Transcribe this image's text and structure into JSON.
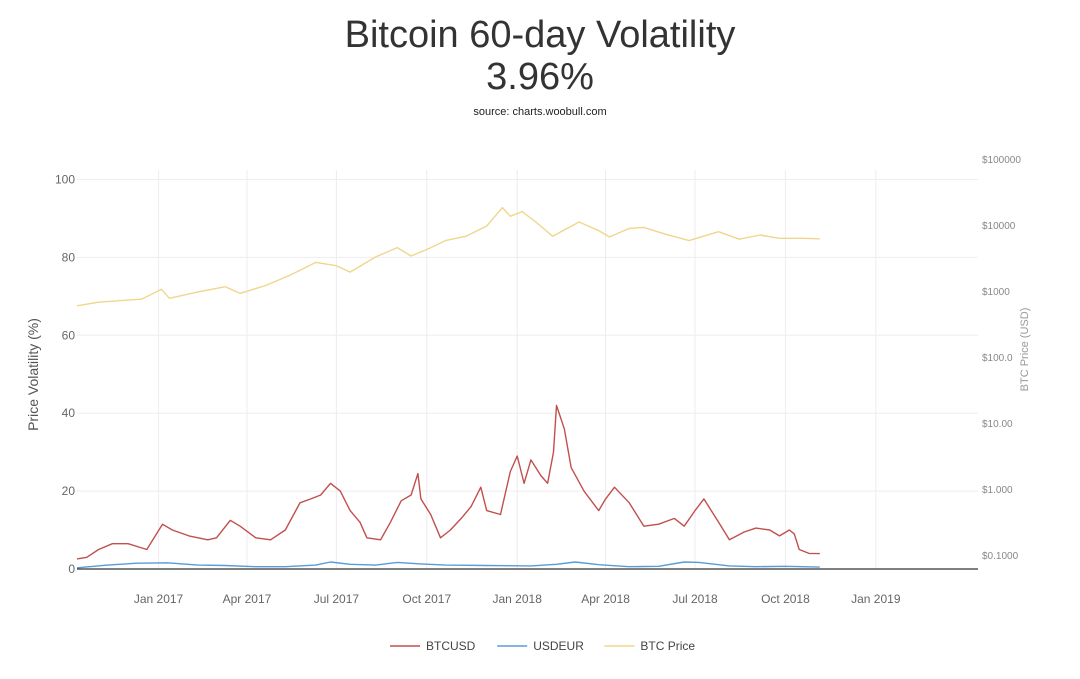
{
  "header": {
    "title": "Bitcoin 60-day Volatility",
    "value": "3.96%",
    "source": "source: charts.woobull.com"
  },
  "chart_data": {
    "type": "line",
    "ylabel": "Price Volatility (%)",
    "y2label": "BTC Price (USD)",
    "ylim": [
      0,
      105
    ],
    "yticks": [
      0,
      20,
      40,
      60,
      80,
      100
    ],
    "y2_scale": "log",
    "y2lim_log": [
      -1.2,
      5
    ],
    "y2ticks": [
      {
        "v": -1,
        "label": "$0.1000"
      },
      {
        "v": 0,
        "label": "$1.000"
      },
      {
        "v": 1,
        "label": "$10.00"
      },
      {
        "v": 2,
        "label": "$100.0"
      },
      {
        "v": 3,
        "label": "$1000"
      },
      {
        "v": 4,
        "label": "$10000"
      },
      {
        "v": 5,
        "label": "$100000"
      }
    ],
    "xlim": [
      "2016-10-10",
      "2019-04-15"
    ],
    "xticks": [
      {
        "x": "2017-01-01",
        "label": "Jan 2017"
      },
      {
        "x": "2017-04-01",
        "label": "Apr 2017"
      },
      {
        "x": "2017-07-01",
        "label": "Jul 2017"
      },
      {
        "x": "2017-10-01",
        "label": "Oct 2017"
      },
      {
        "x": "2018-01-01",
        "label": "Jan 2018"
      },
      {
        "x": "2018-04-01",
        "label": "Apr 2018"
      },
      {
        "x": "2018-07-01",
        "label": "Jul 2018"
      },
      {
        "x": "2018-10-01",
        "label": "Oct 2018"
      },
      {
        "x": "2019-01-01",
        "label": "Jan 2019"
      }
    ],
    "grid": true,
    "legend_position": "bottom-center",
    "series": [
      {
        "name": "BTCUSD",
        "axis": "left",
        "color": "#c0504d",
        "points": [
          [
            "2016-10-10",
            2.6
          ],
          [
            "2016-10-20",
            3.0
          ],
          [
            "2016-11-01",
            5.0
          ],
          [
            "2016-11-15",
            6.5
          ],
          [
            "2016-12-01",
            6.5
          ],
          [
            "2016-12-20",
            5.0
          ],
          [
            "2017-01-05",
            11.5
          ],
          [
            "2017-01-15",
            10.0
          ],
          [
            "2017-02-01",
            8.5
          ],
          [
            "2017-02-20",
            7.5
          ],
          [
            "2017-03-01",
            8.0
          ],
          [
            "2017-03-15",
            12.5
          ],
          [
            "2017-03-25",
            11.0
          ],
          [
            "2017-04-10",
            8.0
          ],
          [
            "2017-04-25",
            7.5
          ],
          [
            "2017-05-10",
            10.0
          ],
          [
            "2017-05-25",
            17.0
          ],
          [
            "2017-06-05",
            18.0
          ],
          [
            "2017-06-15",
            19.0
          ],
          [
            "2017-06-25",
            22.0
          ],
          [
            "2017-07-05",
            20.0
          ],
          [
            "2017-07-15",
            15.0
          ],
          [
            "2017-07-25",
            12.0
          ],
          [
            "2017-08-01",
            8.0
          ],
          [
            "2017-08-15",
            7.5
          ],
          [
            "2017-08-25",
            12.0
          ],
          [
            "2017-09-05",
            17.5
          ],
          [
            "2017-09-15",
            19.0
          ],
          [
            "2017-09-22",
            24.5
          ],
          [
            "2017-09-25",
            18.0
          ],
          [
            "2017-10-05",
            14.0
          ],
          [
            "2017-10-15",
            8.0
          ],
          [
            "2017-10-25",
            10.0
          ],
          [
            "2017-11-05",
            13.0
          ],
          [
            "2017-11-15",
            16.0
          ],
          [
            "2017-11-25",
            21.0
          ],
          [
            "2017-12-01",
            15.0
          ],
          [
            "2017-12-15",
            14.0
          ],
          [
            "2017-12-25",
            25.0
          ],
          [
            "2018-01-01",
            29.0
          ],
          [
            "2018-01-08",
            22.0
          ],
          [
            "2018-01-15",
            28.0
          ],
          [
            "2018-01-25",
            24.0
          ],
          [
            "2018-02-01",
            22.0
          ],
          [
            "2018-02-07",
            30.0
          ],
          [
            "2018-02-10",
            42.0
          ],
          [
            "2018-02-18",
            36.0
          ],
          [
            "2018-02-25",
            26.0
          ],
          [
            "2018-03-10",
            20.0
          ],
          [
            "2018-03-25",
            15.0
          ],
          [
            "2018-04-01",
            18.0
          ],
          [
            "2018-04-10",
            21.0
          ],
          [
            "2018-04-25",
            17.0
          ],
          [
            "2018-05-10",
            11.0
          ],
          [
            "2018-05-25",
            11.5
          ],
          [
            "2018-06-10",
            13.0
          ],
          [
            "2018-06-20",
            11.0
          ],
          [
            "2018-07-01",
            15.0
          ],
          [
            "2018-07-10",
            18.0
          ],
          [
            "2018-07-25",
            12.0
          ],
          [
            "2018-08-05",
            7.5
          ],
          [
            "2018-08-20",
            9.5
          ],
          [
            "2018-09-01",
            10.5
          ],
          [
            "2018-09-15",
            10.0
          ],
          [
            "2018-09-25",
            8.5
          ],
          [
            "2018-10-05",
            10.0
          ],
          [
            "2018-10-10",
            9.0
          ],
          [
            "2018-10-15",
            5.0
          ],
          [
            "2018-10-25",
            4.0
          ],
          [
            "2018-11-05",
            3.96
          ]
        ]
      },
      {
        "name": "USDEUR",
        "axis": "left",
        "color": "#5b9bd5",
        "points": [
          [
            "2016-10-10",
            0.3
          ],
          [
            "2016-11-10",
            1.0
          ],
          [
            "2016-12-10",
            1.5
          ],
          [
            "2017-01-10",
            1.6
          ],
          [
            "2017-02-10",
            1.0
          ],
          [
            "2017-03-10",
            0.9
          ],
          [
            "2017-04-10",
            0.6
          ],
          [
            "2017-05-10",
            0.6
          ],
          [
            "2017-06-10",
            1.0
          ],
          [
            "2017-06-25",
            1.8
          ],
          [
            "2017-07-15",
            1.2
          ],
          [
            "2017-08-10",
            1.0
          ],
          [
            "2017-09-01",
            1.7
          ],
          [
            "2017-09-25",
            1.3
          ],
          [
            "2017-10-20",
            1.0
          ],
          [
            "2017-12-01",
            0.9
          ],
          [
            "2018-01-15",
            0.8
          ],
          [
            "2018-02-10",
            1.2
          ],
          [
            "2018-03-01",
            1.8
          ],
          [
            "2018-03-25",
            1.1
          ],
          [
            "2018-04-25",
            0.6
          ],
          [
            "2018-05-25",
            0.7
          ],
          [
            "2018-06-20",
            1.8
          ],
          [
            "2018-07-05",
            1.7
          ],
          [
            "2018-08-05",
            0.8
          ],
          [
            "2018-09-01",
            0.6
          ],
          [
            "2018-10-01",
            0.7
          ],
          [
            "2018-11-05",
            0.5
          ]
        ]
      },
      {
        "name": "BTC Price",
        "axis": "right",
        "color": "#f0d68c",
        "points": [
          [
            "2016-10-10",
            616
          ],
          [
            "2016-11-01",
            700
          ],
          [
            "2016-12-15",
            780
          ],
          [
            "2017-01-04",
            1100
          ],
          [
            "2017-01-12",
            800
          ],
          [
            "2017-02-10",
            1000
          ],
          [
            "2017-03-10",
            1200
          ],
          [
            "2017-03-25",
            950
          ],
          [
            "2017-04-20",
            1250
          ],
          [
            "2017-05-15",
            1800
          ],
          [
            "2017-06-10",
            2800
          ],
          [
            "2017-07-01",
            2500
          ],
          [
            "2017-07-15",
            2000
          ],
          [
            "2017-08-10",
            3400
          ],
          [
            "2017-09-01",
            4700
          ],
          [
            "2017-09-15",
            3500
          ],
          [
            "2017-10-01",
            4400
          ],
          [
            "2017-10-20",
            6000
          ],
          [
            "2017-11-10",
            7000
          ],
          [
            "2017-12-01",
            10000
          ],
          [
            "2017-12-17",
            19000
          ],
          [
            "2017-12-25",
            14000
          ],
          [
            "2018-01-06",
            16500
          ],
          [
            "2018-01-20",
            11500
          ],
          [
            "2018-02-06",
            7000
          ],
          [
            "2018-03-05",
            11500
          ],
          [
            "2018-03-25",
            8500
          ],
          [
            "2018-04-05",
            6800
          ],
          [
            "2018-04-25",
            9200
          ],
          [
            "2018-05-10",
            9500
          ],
          [
            "2018-06-01",
            7500
          ],
          [
            "2018-06-25",
            6000
          ],
          [
            "2018-07-25",
            8200
          ],
          [
            "2018-08-15",
            6300
          ],
          [
            "2018-09-05",
            7300
          ],
          [
            "2018-09-25",
            6500
          ],
          [
            "2018-10-20",
            6500
          ],
          [
            "2018-11-05",
            6400
          ]
        ]
      }
    ]
  }
}
